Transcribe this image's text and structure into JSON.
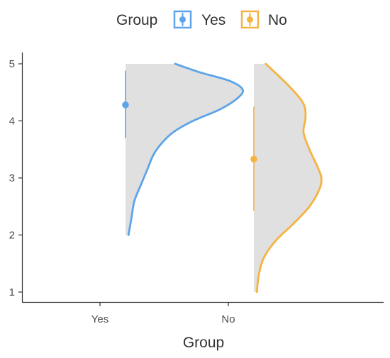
{
  "chart_data": {
    "type": "violin",
    "title": "",
    "xlabel": "Group",
    "ylabel": "",
    "categories": [
      "Yes",
      "No"
    ],
    "yticks": [
      "1",
      "2",
      "3",
      "4",
      "5"
    ],
    "ylim": [
      0.8,
      5.2
    ],
    "grid": false,
    "legend": {
      "title": "Group",
      "placement": "top",
      "items": [
        {
          "label": "Yes",
          "color": "#5DA5E8"
        },
        {
          "label": "No",
          "color": "#F5B342"
        }
      ]
    },
    "series": [
      {
        "name": "Yes",
        "color": "#5DA5E8",
        "fill": "#E0E0E0",
        "mean": 4.28,
        "interval": [
          3.7,
          4.88
        ],
        "density": [
          {
            "y": 2.0,
            "w": 0.03
          },
          {
            "y": 2.3,
            "w": 0.06
          },
          {
            "y": 2.6,
            "w": 0.09
          },
          {
            "y": 2.9,
            "w": 0.16
          },
          {
            "y": 3.15,
            "w": 0.22
          },
          {
            "y": 3.4,
            "w": 0.28
          },
          {
            "y": 3.6,
            "w": 0.36
          },
          {
            "y": 3.8,
            "w": 0.48
          },
          {
            "y": 4.0,
            "w": 0.68
          },
          {
            "y": 4.2,
            "w": 0.95
          },
          {
            "y": 4.4,
            "w": 1.13
          },
          {
            "y": 4.55,
            "w": 1.18
          },
          {
            "y": 4.7,
            "w": 1.05
          },
          {
            "y": 4.85,
            "w": 0.75
          },
          {
            "y": 5.0,
            "w": 0.5
          }
        ]
      },
      {
        "name": "No",
        "color": "#F5B342",
        "fill": "#E0E0E0",
        "mean": 3.33,
        "interval": [
          2.42,
          4.25
        ],
        "density": [
          {
            "y": 1.0,
            "w": 0.03
          },
          {
            "y": 1.3,
            "w": 0.05
          },
          {
            "y": 1.6,
            "w": 0.1
          },
          {
            "y": 1.9,
            "w": 0.22
          },
          {
            "y": 2.2,
            "w": 0.4
          },
          {
            "y": 2.5,
            "w": 0.56
          },
          {
            "y": 2.8,
            "w": 0.66
          },
          {
            "y": 3.0,
            "w": 0.68
          },
          {
            "y": 3.2,
            "w": 0.64
          },
          {
            "y": 3.5,
            "w": 0.56
          },
          {
            "y": 3.8,
            "w": 0.5
          },
          {
            "y": 4.05,
            "w": 0.52
          },
          {
            "y": 4.3,
            "w": 0.5
          },
          {
            "y": 4.6,
            "w": 0.36
          },
          {
            "y": 5.0,
            "w": 0.12
          }
        ]
      }
    ]
  }
}
